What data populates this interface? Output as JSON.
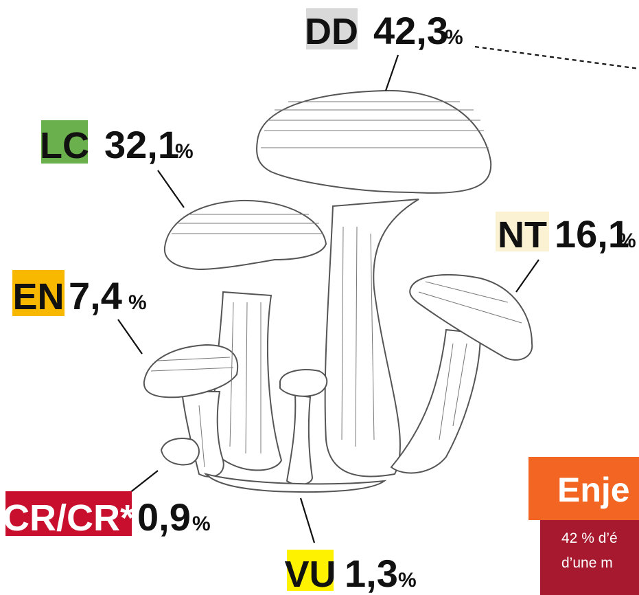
{
  "labels": [
    {
      "code": "DD",
      "value": "42,3",
      "unit": "%"
    },
    {
      "code": "LC",
      "value": "32,1",
      "unit": "%"
    },
    {
      "code": "NT",
      "value": "16,1",
      "unit": "%"
    },
    {
      "code": "EN",
      "value": "7,4",
      "unit": "%"
    },
    {
      "code": "CR/CR*",
      "value": "0,9",
      "unit": "%"
    },
    {
      "code": "VU",
      "value": "1,3",
      "unit": "%"
    }
  ],
  "side_panel": {
    "title": "Enje",
    "lines": [
      "42 % d’é",
      "d’une m"
    ]
  }
}
